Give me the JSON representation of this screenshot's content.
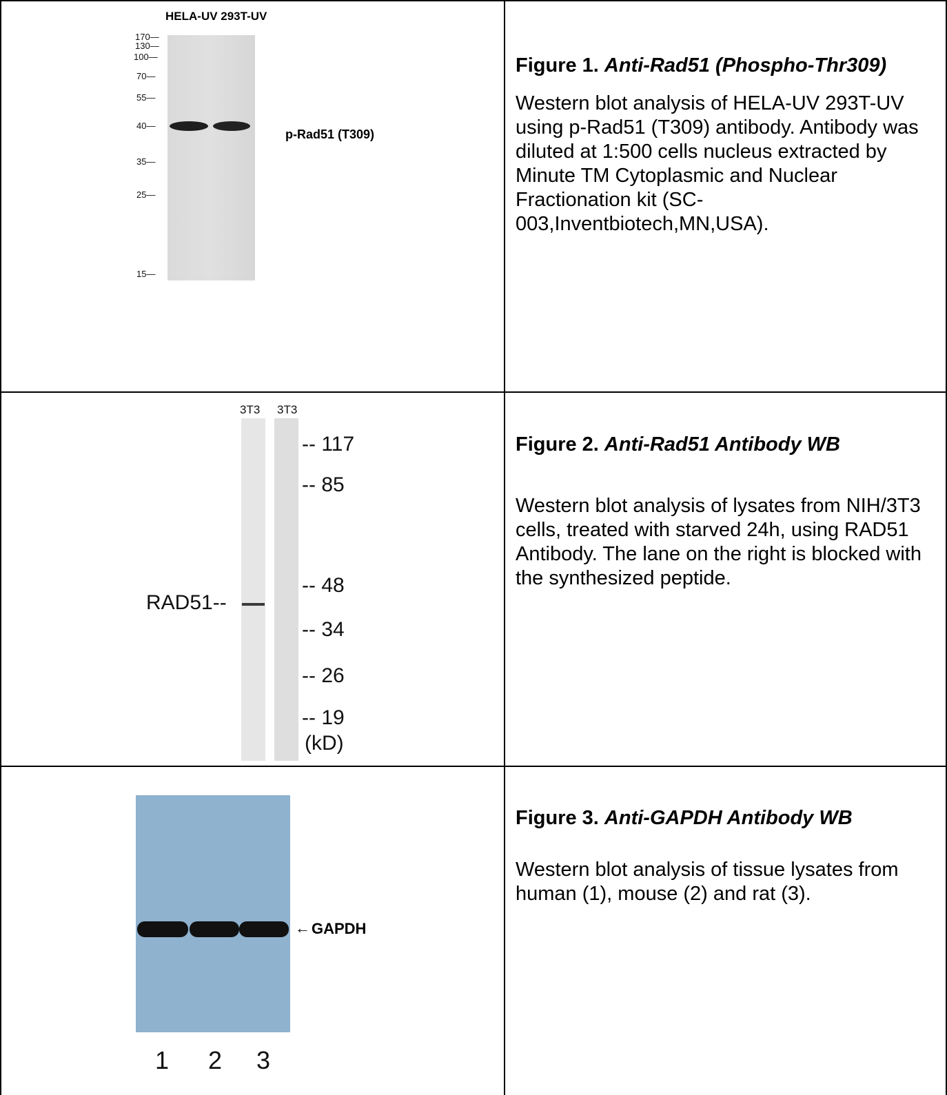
{
  "figures": [
    {
      "title_prefix": "Figure 1.",
      "title_italic": "Anti-Rad51 (Phospho-Thr309)",
      "description": "Western blot analysis of HELA-UV 293T-UV using p-Rad51 (T309) antibody. Antibody was diluted at 1:500 cells nucleus extracted by Minute TM Cytoplasmic and Nuclear Fractionation kit (SC-003,Inventbiotech,MN,USA).",
      "blot": {
        "header": "HELA-UV 293T-UV",
        "band_label": "p-Rad51 (T309)",
        "markers": [
          "170—",
          "130—",
          "100—",
          "70—",
          "55—",
          "40—",
          "35—",
          "25—",
          "15—"
        ]
      }
    },
    {
      "title_prefix": "Figure 2.",
      "title_italic": "Anti-Rad51 Antibody WB",
      "description": "Western blot analysis of lysates from NIH/3T3 cells, treated with starved 24h, using RAD51 Antibody. The lane on the right is blocked with the synthesized peptide.",
      "blot": {
        "lane_labels": [
          "3T3",
          "3T3"
        ],
        "band_label": "RAD51--",
        "markers": [
          "-- 117",
          "-- 85",
          "-- 48",
          "-- 34",
          "-- 26",
          "-- 19"
        ],
        "unit": "(kD)"
      }
    },
    {
      "title_prefix": "Figure 3.",
      "title_italic": "Anti-GAPDH Antibody WB",
      "description": "Western blot analysis of tissue lysates from human (1), mouse (2) and rat (3).",
      "blot": {
        "band_label": "GAPDH",
        "lane_numbers": [
          "1",
          "2",
          "3"
        ],
        "film_color": "#8fb2cf"
      }
    }
  ]
}
